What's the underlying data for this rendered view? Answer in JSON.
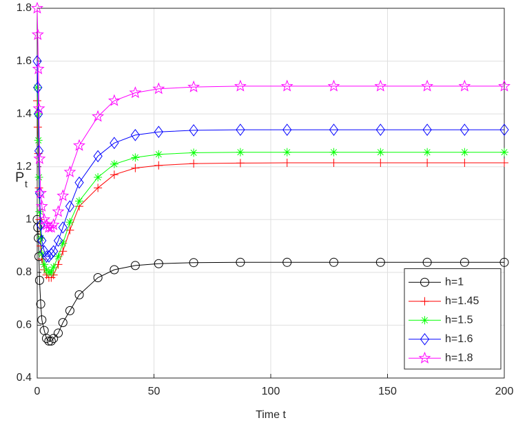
{
  "chart_data": {
    "type": "line",
    "xlabel": "Time t",
    "ylabel": "P",
    "ylabel_subscript": "t",
    "x": [
      0,
      0.25,
      0.5,
      0.75,
      1,
      1.5,
      2,
      3,
      4,
      5,
      6,
      7,
      9,
      11,
      14,
      18,
      26,
      33,
      42,
      52,
      67,
      87,
      107,
      127,
      147,
      167,
      183,
      200
    ],
    "series": [
      {
        "name": "h=1",
        "color": "#000000",
        "marker": "o",
        "values": [
          1.0,
          0.97,
          0.93,
          0.86,
          0.77,
          0.68,
          0.62,
          0.58,
          0.55,
          0.54,
          0.54,
          0.55,
          0.57,
          0.61,
          0.655,
          0.715,
          0.78,
          0.81,
          0.826,
          0.833,
          0.837,
          0.838,
          0.838,
          0.838,
          0.838,
          0.838,
          0.838,
          0.838
        ]
      },
      {
        "name": "h=1.45",
        "color": "#ff0000",
        "marker": "+",
        "values": [
          1.45,
          1.35,
          1.25,
          1.12,
          1.0,
          0.9,
          0.85,
          0.81,
          0.79,
          0.78,
          0.78,
          0.79,
          0.83,
          0.88,
          0.96,
          1.05,
          1.12,
          1.17,
          1.195,
          1.205,
          1.212,
          1.214,
          1.215,
          1.215,
          1.215,
          1.215,
          1.215,
          1.215
        ]
      },
      {
        "name": "h=1.5",
        "color": "#00ff00",
        "marker": "*",
        "values": [
          1.5,
          1.4,
          1.3,
          1.16,
          1.03,
          0.93,
          0.87,
          0.83,
          0.81,
          0.8,
          0.8,
          0.82,
          0.86,
          0.91,
          0.99,
          1.07,
          1.16,
          1.21,
          1.235,
          1.247,
          1.253,
          1.255,
          1.255,
          1.255,
          1.255,
          1.255,
          1.255,
          1.255
        ]
      },
      {
        "name": "h=1.6",
        "color": "#0000ff",
        "marker": "d",
        "values": [
          1.6,
          1.5,
          1.4,
          1.26,
          1.1,
          0.98,
          0.92,
          0.88,
          0.86,
          0.86,
          0.87,
          0.88,
          0.92,
          0.97,
          1.05,
          1.14,
          1.24,
          1.29,
          1.32,
          1.332,
          1.338,
          1.34,
          1.34,
          1.34,
          1.34,
          1.34,
          1.34,
          1.34
        ]
      },
      {
        "name": "h=1.8",
        "color": "#ff00ff",
        "marker": "p",
        "values": [
          1.8,
          1.7,
          1.57,
          1.42,
          1.23,
          1.1,
          1.05,
          1.0,
          0.98,
          0.97,
          0.97,
          0.98,
          1.03,
          1.09,
          1.18,
          1.28,
          1.39,
          1.45,
          1.48,
          1.495,
          1.502,
          1.505,
          1.505,
          1.505,
          1.505,
          1.505,
          1.505,
          1.505
        ]
      }
    ],
    "xlim": [
      0,
      200
    ],
    "xticks": [
      0,
      50,
      100,
      150,
      200
    ],
    "ylim": [
      0.4,
      1.8
    ],
    "yticks": [
      0.4,
      0.6,
      0.8,
      1,
      1.2,
      1.4,
      1.6,
      1.8
    ],
    "grid": true,
    "legend": "lower right"
  }
}
